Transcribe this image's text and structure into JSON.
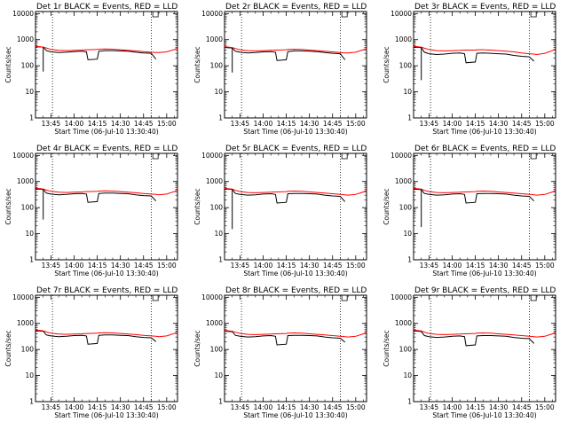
{
  "chart_data": {
    "type": "line",
    "layout": {
      "rows": 3,
      "cols": 3
    },
    "yscale": "log",
    "ylim": [
      1,
      12000
    ],
    "yticks": [
      {
        "value": 1,
        "label": "1"
      },
      {
        "value": 10,
        "label": "10"
      },
      {
        "value": 100,
        "label": "100"
      },
      {
        "value": 1000,
        "label": "1000"
      },
      {
        "value": 10000,
        "label": "10000"
      }
    ],
    "xlim": [
      "13:35",
      "15:07"
    ],
    "xticks": [
      {
        "value": "13:45",
        "label": "13:45"
      },
      {
        "value": "14:00",
        "label": "14:00"
      },
      {
        "value": "14:15",
        "label": "14:15"
      },
      {
        "value": "14:30",
        "label": "14:30"
      },
      {
        "value": "14:45",
        "label": "14:45"
      },
      {
        "value": "15:00",
        "label": "15:00"
      }
    ],
    "xlabel": "Start Time (06-Jul-10 13:30:40)",
    "ylabel": "Counts/sec",
    "colors": {
      "events": "#000000",
      "lld": "#ff0000"
    },
    "vlines": [
      "13:46",
      "14:50"
    ],
    "bracket_marker": "14:51",
    "x": [
      "13:35",
      "13:40",
      "13:42",
      "13:45",
      "13:50",
      "13:55",
      "14:00",
      "14:05",
      "14:08",
      "14:09",
      "14:15",
      "14:16",
      "14:20",
      "14:25",
      "14:30",
      "14:35",
      "14:40",
      "14:45",
      "14:50",
      "14:53",
      "14:55",
      "15:00",
      "15:05",
      "15:07"
    ],
    "panels": [
      {
        "title": "Det 1r BLACK = Events, RED = LLD",
        "series": [
          {
            "name": "Events",
            "values": [
              540,
              520,
              380,
              340,
              320,
              330,
              350,
              360,
              340,
              170,
              180,
              360,
              380,
              380,
              370,
              360,
              330,
              310,
              300,
              180,
              null,
              null,
              null,
              null
            ]
          },
          {
            "name": "LLD",
            "values": [
              560,
              520,
              480,
              420,
              390,
              380,
              390,
              400,
              410,
              410,
              420,
              430,
              440,
              430,
              410,
              390,
              370,
              350,
              330,
              320,
              320,
              340,
              420,
              480
            ]
          }
        ],
        "spikes": [
          {
            "x": "13:40",
            "y": 60
          }
        ]
      },
      {
        "title": "Det 2r BLACK = Events, RED = LLD",
        "series": [
          {
            "name": "Events",
            "values": [
              500,
              480,
              360,
              330,
              310,
              320,
              340,
              350,
              330,
              160,
              170,
              350,
              370,
              370,
              360,
              350,
              320,
              300,
              290,
              170,
              null,
              null,
              null,
              null
            ]
          },
          {
            "name": "LLD",
            "values": [
              540,
              500,
              460,
              410,
              380,
              370,
              380,
              390,
              400,
              400,
              410,
              420,
              430,
              420,
              400,
              380,
              360,
              340,
              320,
              310,
              310,
              330,
              410,
              470
            ]
          }
        ],
        "spikes": [
          {
            "x": "13:40",
            "y": 55
          }
        ]
      },
      {
        "title": "Det 3r BLACK = Events, RED = LLD",
        "series": [
          {
            "name": "Events",
            "values": [
              520,
              500,
              330,
              290,
              270,
              280,
              300,
              310,
              290,
              130,
              140,
              300,
              310,
              300,
              290,
              280,
              250,
              230,
              220,
              150,
              null,
              null,
              null,
              null
            ]
          },
          {
            "name": "LLD",
            "values": [
              560,
              520,
              470,
              420,
              380,
              370,
              380,
              390,
              400,
              400,
              400,
              410,
              410,
              400,
              380,
              360,
              340,
              310,
              290,
              280,
              270,
              300,
              380,
              450
            ]
          }
        ],
        "spikes": [
          {
            "x": "13:40",
            "y": 28
          }
        ]
      },
      {
        "title": "Det 4r BLACK = Events, RED = LLD",
        "series": [
          {
            "name": "Events",
            "values": [
              520,
              500,
              360,
              330,
              310,
              320,
              340,
              350,
              330,
              160,
              170,
              350,
              360,
              360,
              350,
              340,
              310,
              290,
              280,
              180,
              null,
              null,
              null,
              null
            ]
          },
          {
            "name": "LLD",
            "values": [
              560,
              520,
              470,
              420,
              390,
              380,
              390,
              400,
              410,
              410,
              420,
              430,
              440,
              430,
              410,
              390,
              370,
              350,
              330,
              320,
              310,
              330,
              410,
              480
            ]
          }
        ],
        "spikes": [
          {
            "x": "13:40",
            "y": 35
          }
        ]
      },
      {
        "title": "Det 5r BLACK = Events, RED = LLD",
        "series": [
          {
            "name": "Events",
            "values": [
              520,
              500,
              350,
              320,
              300,
              310,
              330,
              340,
              320,
              150,
              160,
              340,
              350,
              350,
              340,
              330,
              300,
              280,
              270,
              170,
              null,
              null,
              null,
              null
            ]
          },
          {
            "name": "LLD",
            "values": [
              550,
              510,
              460,
              410,
              380,
              370,
              380,
              390,
              400,
              400,
              410,
              420,
              430,
              420,
              400,
              380,
              360,
              340,
              320,
              310,
              300,
              320,
              400,
              470
            ]
          }
        ],
        "spikes": [
          {
            "x": "13:40",
            "y": 15
          }
        ]
      },
      {
        "title": "Det 6r BLACK = Events, RED = LLD",
        "series": [
          {
            "name": "Events",
            "values": [
              510,
              490,
              350,
              320,
              300,
              310,
              330,
              340,
              320,
              150,
              160,
              340,
              350,
              350,
              340,
              330,
              300,
              280,
              270,
              180,
              null,
              null,
              null,
              null
            ]
          },
          {
            "name": "LLD",
            "values": [
              550,
              510,
              460,
              410,
              380,
              370,
              380,
              390,
              400,
              400,
              410,
              420,
              430,
              420,
              400,
              380,
              360,
              340,
              320,
              310,
              300,
              320,
              400,
              470
            ]
          }
        ],
        "spikes": [
          {
            "x": "13:40",
            "y": 18
          }
        ]
      },
      {
        "title": "Det 7r BLACK = Events, RED = LLD",
        "series": [
          {
            "name": "Events",
            "values": [
              520,
              500,
              360,
              330,
              310,
              320,
              340,
              350,
              330,
              160,
              170,
              350,
              360,
              360,
              350,
              340,
              310,
              290,
              280,
              200,
              null,
              null,
              null,
              null
            ]
          },
          {
            "name": "LLD",
            "values": [
              560,
              520,
              470,
              420,
              390,
              380,
              390,
              400,
              410,
              410,
              420,
              430,
              440,
              430,
              410,
              390,
              370,
              350,
              330,
              320,
              310,
              330,
              410,
              480
            ]
          }
        ],
        "spikes": []
      },
      {
        "title": "Det 8r BLACK = Events, RED = LLD",
        "series": [
          {
            "name": "Events",
            "values": [
              500,
              480,
              350,
              320,
              300,
              310,
              330,
              340,
              320,
              150,
              160,
              340,
              350,
              350,
              340,
              330,
              300,
              280,
              270,
              190,
              null,
              null,
              null,
              null
            ]
          },
          {
            "name": "LLD",
            "values": [
              540,
              500,
              460,
              410,
              380,
              370,
              380,
              390,
              400,
              400,
              410,
              420,
              430,
              420,
              400,
              380,
              360,
              340,
              320,
              310,
              300,
              320,
              400,
              470
            ]
          }
        ],
        "spikes": []
      },
      {
        "title": "Det 9r BLACK = Events, RED = LLD",
        "series": [
          {
            "name": "Events",
            "values": [
              510,
              490,
              340,
              310,
              290,
              300,
              320,
              330,
              310,
              140,
              150,
              330,
              340,
              340,
              330,
              320,
              290,
              270,
              260,
              170,
              null,
              null,
              null,
              null
            ]
          },
          {
            "name": "LLD",
            "values": [
              550,
              510,
              460,
              410,
              380,
              370,
              380,
              390,
              400,
              400,
              410,
              420,
              430,
              420,
              400,
              380,
              360,
              340,
              320,
              310,
              300,
              320,
              400,
              470
            ]
          }
        ],
        "spikes": []
      }
    ]
  }
}
